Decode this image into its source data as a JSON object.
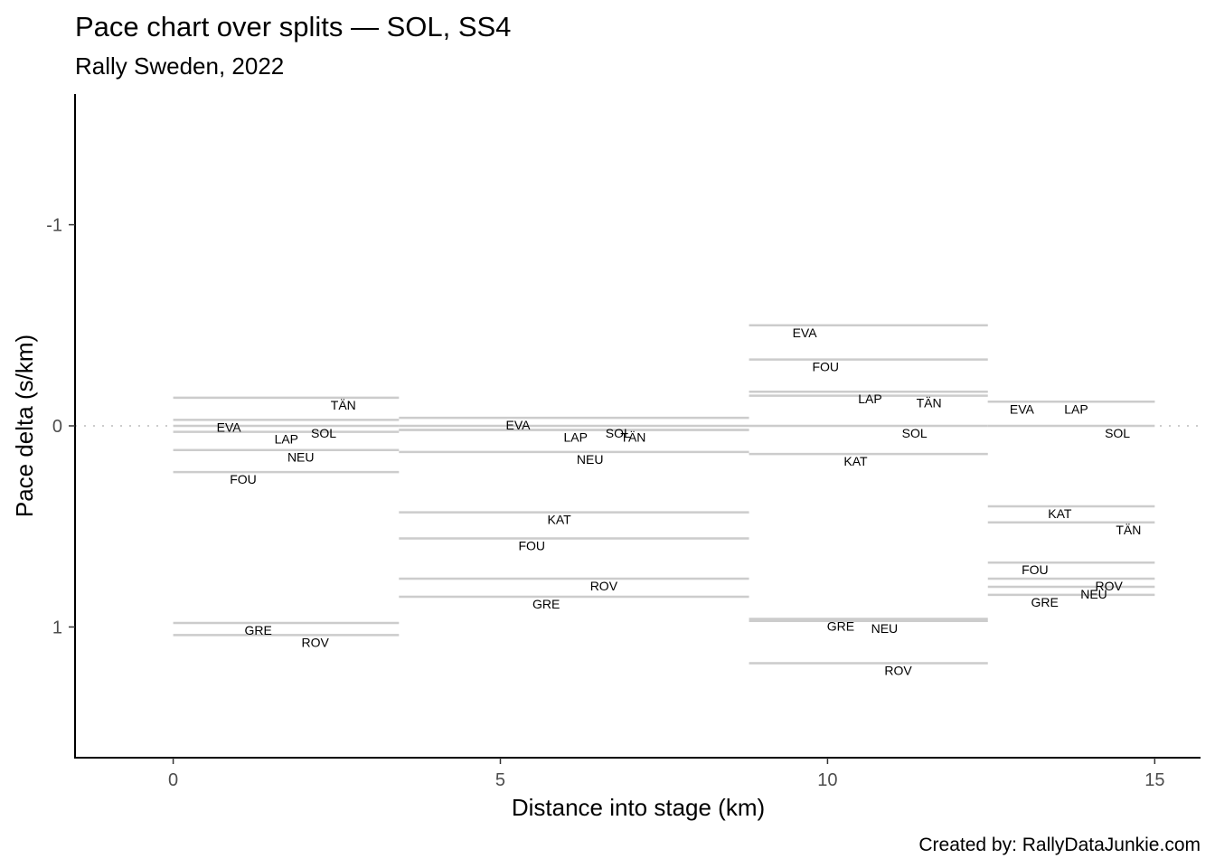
{
  "chart_data": {
    "type": "segments",
    "title": "Pace chart over splits — SOL, SS4",
    "subtitle": "Rally Sweden, 2022",
    "xlabel": "Distance into stage (km)",
    "ylabel": "Pace delta (s/km)",
    "caption": "Created by: RallyDataJunkie.com",
    "xlim": [
      -1.5,
      15.7
    ],
    "ylim": [
      1.65,
      -1.65
    ],
    "y_reversed": true,
    "x_ticks": [
      0,
      5,
      10,
      15
    ],
    "x_tick_labels": [
      "0",
      "5",
      "10",
      "15"
    ],
    "y_ticks": [
      -1,
      0,
      1
    ],
    "y_tick_labels": [
      "-1",
      "0",
      "1"
    ],
    "reference_line": 0,
    "splits": [
      {
        "start": 0,
        "end": 3.45,
        "drivers": [
          {
            "code": "TÄN",
            "pace": -0.14,
            "label_x": 2.6
          },
          {
            "code": "EVA",
            "pace": -0.03,
            "label_x": 0.85
          },
          {
            "code": "SOL",
            "pace": 0.0,
            "label_x": 2.3
          },
          {
            "code": "LAP",
            "pace": 0.03,
            "label_x": 1.73
          },
          {
            "code": "NEU",
            "pace": 0.12,
            "label_x": 1.95
          },
          {
            "code": "FOU",
            "pace": 0.23,
            "label_x": 1.07
          },
          {
            "code": "GRE",
            "pace": 0.98,
            "label_x": 1.3
          },
          {
            "code": "ROV",
            "pace": 1.04,
            "label_x": 2.17
          }
        ]
      },
      {
        "start": 3.45,
        "end": 8.8,
        "drivers": [
          {
            "code": "EVA",
            "pace": -0.04,
            "label_x": 5.27
          },
          {
            "code": "SOL",
            "pace": 0.0,
            "label_x": 6.8
          },
          {
            "code": "TÄN",
            "pace": 0.02,
            "label_x": 7.03
          },
          {
            "code": "LAP",
            "pace": 0.02,
            "label_x": 6.15
          },
          {
            "code": "NEU",
            "pace": 0.13,
            "label_x": 6.37
          },
          {
            "code": "KAT",
            "pace": 0.43,
            "label_x": 5.9
          },
          {
            "code": "FOU",
            "pace": 0.56,
            "label_x": 5.48
          },
          {
            "code": "ROV",
            "pace": 0.76,
            "label_x": 6.58
          },
          {
            "code": "GRE",
            "pace": 0.85,
            "label_x": 5.7
          }
        ]
      },
      {
        "start": 8.8,
        "end": 12.45,
        "drivers": [
          {
            "code": "EVA",
            "pace": -0.5,
            "label_x": 9.65
          },
          {
            "code": "FOU",
            "pace": -0.33,
            "label_x": 9.97
          },
          {
            "code": "LAP",
            "pace": -0.17,
            "label_x": 10.65
          },
          {
            "code": "TÄN",
            "pace": -0.15,
            "label_x": 11.55
          },
          {
            "code": "SOL",
            "pace": 0.0,
            "label_x": 11.33
          },
          {
            "code": "KAT",
            "pace": 0.14,
            "label_x": 10.43
          },
          {
            "code": "GRE",
            "pace": 0.96,
            "label_x": 10.2
          },
          {
            "code": "NEU",
            "pace": 0.97,
            "label_x": 10.87
          },
          {
            "code": "ROV",
            "pace": 1.18,
            "label_x": 11.08
          }
        ]
      },
      {
        "start": 12.45,
        "end": 15.0,
        "drivers": [
          {
            "code": "EVA",
            "pace": -0.12,
            "label_x": 12.97
          },
          {
            "code": "LAP",
            "pace": -0.12,
            "label_x": 13.8
          },
          {
            "code": "SOL",
            "pace": 0.0,
            "label_x": 14.43
          },
          {
            "code": "KAT",
            "pace": 0.4,
            "label_x": 13.55
          },
          {
            "code": "TÄN",
            "pace": 0.48,
            "label_x": 14.6
          },
          {
            "code": "FOU",
            "pace": 0.68,
            "label_x": 13.17
          },
          {
            "code": "ROV",
            "pace": 0.76,
            "label_x": 14.3
          },
          {
            "code": "NEU",
            "pace": 0.8,
            "label_x": 14.07
          },
          {
            "code": "GRE",
            "pace": 0.84,
            "label_x": 13.32
          }
        ]
      }
    ]
  }
}
